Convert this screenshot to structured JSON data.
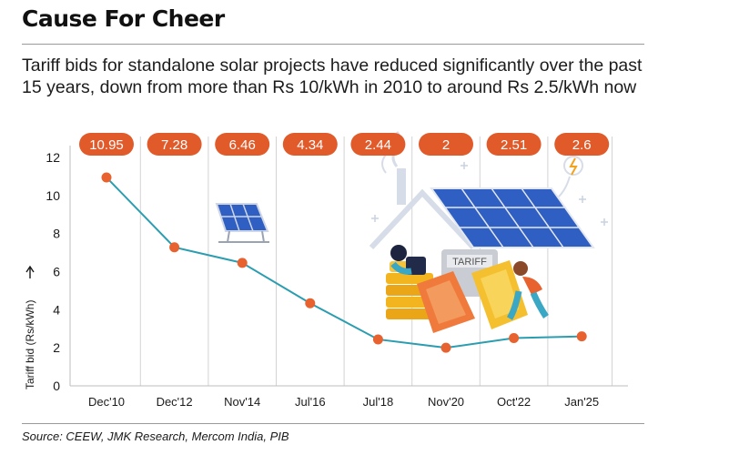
{
  "title": "Cause For Cheer",
  "subtitle": "Tariff bids for standalone solar projects have reduced significantly over the past 15 years, down from more than Rs 10/kWh in 2010 to around Rs 2.5/kWh now",
  "source": "Source: CEEW, JMK Research, Mercom India, PIB",
  "illustration": {
    "sign_text": "TARIFF"
  },
  "colors": {
    "line": "#2a9db0",
    "marker": "#e8622f",
    "label_pill": "#e15a2a",
    "grid": "#d3d3d3"
  },
  "chart_data": {
    "type": "line",
    "categories": [
      "Dec'10",
      "Dec'12",
      "Nov'14",
      "Jul'16",
      "Jul'18",
      "Nov'20",
      "Oct'22",
      "Jan'25"
    ],
    "values": [
      10.95,
      7.28,
      6.46,
      4.34,
      2.44,
      2,
      2.51,
      2.6
    ],
    "data_labels": [
      "10.95",
      "7.28",
      "6.46",
      "4.34",
      "2.44",
      "2",
      "2.51",
      "2.6"
    ],
    "ylabel": "Tariff bid (Rs/kWh)",
    "ylim": [
      0,
      12
    ],
    "yticks": [
      "0",
      "2",
      "4",
      "6",
      "8",
      "10",
      "12"
    ],
    "grid": "vertical",
    "legend": "none"
  }
}
